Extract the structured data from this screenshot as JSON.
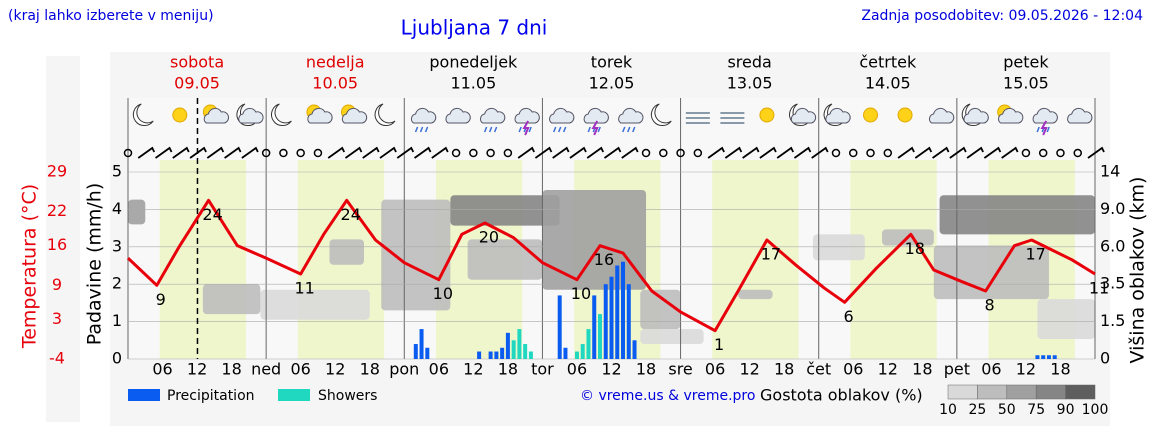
{
  "chart_data": {
    "type": "meteogram",
    "title": "Ljubljana 7 dni",
    "note": "(kraj lahko izberete v meniju)",
    "updated": "Zadnja posodobitev: 09.05.2026 - 12:04",
    "credit": "© vreme.us & vreme.pro",
    "days": [
      {
        "name": "sobota",
        "date": "09.05",
        "color": "#e00000"
      },
      {
        "name": "nedelja",
        "date": "10.05",
        "color": "#e00000"
      },
      {
        "name": "ponedeljek",
        "date": "11.05",
        "color": "#000000"
      },
      {
        "name": "torek",
        "date": "12.05",
        "color": "#000000"
      },
      {
        "name": "sreda",
        "date": "13.05",
        "color": "#000000"
      },
      {
        "name": "četrtek",
        "date": "14.05",
        "color": "#000000"
      },
      {
        "name": "petek",
        "date": "15.05",
        "color": "#000000"
      }
    ],
    "xlim": [
      0,
      168
    ],
    "xticks": [
      {
        "value": 6,
        "label": "06"
      },
      12,
      18,
      {
        "value": 24,
        "label": "ned"
      },
      {
        "value": 30,
        "label": "06"
      },
      {
        "value": 36,
        "label": "12"
      },
      {
        "value": 42,
        "label": "18"
      },
      {
        "value": 48,
        "label": "pon"
      },
      {
        "value": 54,
        "label": "06"
      },
      {
        "value": 60,
        "label": "12"
      },
      {
        "value": 66,
        "label": "18"
      },
      {
        "value": 72,
        "label": "tor"
      },
      {
        "value": 78,
        "label": "06"
      },
      {
        "value": 84,
        "label": "12"
      },
      {
        "value": 90,
        "label": "18"
      },
      {
        "value": 96,
        "label": "sre"
      },
      {
        "value": 102,
        "label": "06"
      },
      {
        "value": 108,
        "label": "12"
      },
      {
        "value": 114,
        "label": "18"
      },
      {
        "value": 120,
        "label": "čet"
      },
      {
        "value": 126,
        "label": "06"
      },
      {
        "value": 132,
        "label": "12"
      },
      {
        "value": 138,
        "label": "18"
      },
      {
        "value": 144,
        "label": "pet"
      },
      {
        "value": 150,
        "label": "06"
      },
      {
        "value": 156,
        "label": "12"
      },
      {
        "value": 162,
        "label": "18"
      }
    ],
    "now": 12.07,
    "daylight": [
      5.5,
      20.5
    ],
    "ylabel": "Padavine (mm/h)",
    "ylim": [
      0,
      5
    ],
    "yticks": [
      0,
      1,
      2,
      3,
      4,
      5
    ],
    "y2label": "Višina oblakov (km)",
    "y2lim": [
      0,
      14
    ],
    "y2ticks": [
      0,
      1.5,
      3.5,
      {
        "value": 6,
        "label": "6.0"
      },
      {
        "value": 9,
        "label": "9.0"
      },
      14
    ],
    "temperature": {
      "label": "Temperatura (°C)",
      "color": "#e8000b",
      "ylim": [
        -4,
        29
      ],
      "yticks": [
        29,
        22,
        16,
        9,
        3,
        -4
      ],
      "x": [
        0,
        5,
        9,
        14,
        19,
        24,
        30,
        34,
        38,
        43,
        48,
        54,
        58,
        62,
        67,
        72,
        78,
        82,
        86,
        91,
        96,
        102,
        106,
        111,
        116,
        121,
        124.5,
        130,
        136,
        140,
        145,
        149,
        154,
        157,
        164,
        168
      ],
      "values": [
        13.8,
        9,
        16,
        24,
        16,
        13.8,
        11,
        18,
        24,
        17,
        13,
        10,
        18,
        20,
        17.4,
        13,
        10,
        16,
        14.7,
        8,
        4.3,
        1,
        8,
        17,
        12.6,
        8.5,
        6,
        12,
        18,
        11.7,
        9.6,
        8,
        16,
        17,
        13.5,
        11
      ],
      "extrema": {
        "x": [
          5,
          14,
          30,
          38,
          54,
          62,
          78,
          82,
          102,
          111,
          124.5,
          136,
          149,
          157,
          168
        ],
        "values": [
          9,
          24,
          11,
          24,
          10,
          20,
          10,
          16,
          1,
          17,
          6,
          18,
          8,
          17,
          11
        ]
      }
    },
    "series": [
      {
        "name": "Precipitation",
        "color": "#0a5cf0",
        "x": [
          50,
          51,
          52,
          61,
          63,
          64,
          65,
          66,
          75,
          76,
          81,
          83,
          84,
          85,
          86,
          87,
          88,
          158,
          159,
          160,
          161
        ],
        "values": [
          0.4,
          0.8,
          0.3,
          0.2,
          0.2,
          0.2,
          0.3,
          0.7,
          1.7,
          0.3,
          1.7,
          2.0,
          2.2,
          2.5,
          2.6,
          2.0,
          0.5,
          0.1,
          0.1,
          0.1,
          0.1
        ]
      },
      {
        "name": "Showers",
        "color": "#20d8c0",
        "x": [
          67,
          68,
          69,
          70,
          78,
          79,
          80,
          82
        ],
        "values": [
          0.5,
          0.8,
          0.4,
          0.2,
          0.2,
          0.4,
          0.8,
          1.2
        ]
      }
    ],
    "clouds": {
      "label": "Gostota oblakov (%)",
      "ticks": [
        10,
        25,
        50,
        75,
        90,
        100
      ],
      "colors": [
        "#d9d9d9",
        "#bdbdbd",
        "#a0a0a0",
        "#858585",
        "#5e5e5e"
      ],
      "blocks": [
        {
          "x": [
            0,
            3
          ],
          "km": [
            7.8,
            10.3
          ],
          "density": 75
        },
        {
          "x": [
            13,
            23
          ],
          "km": [
            1.9,
            3.5
          ],
          "density": 50
        },
        {
          "x": [
            23,
            42
          ],
          "km": [
            1.6,
            3.2
          ],
          "density": 25
        },
        {
          "x": [
            35,
            41
          ],
          "km": [
            4.8,
            6.6
          ],
          "density": 50
        },
        {
          "x": [
            44,
            56
          ],
          "km": [
            2.1,
            10.3
          ],
          "density": 50
        },
        {
          "x": [
            56,
            75
          ],
          "km": [
            7.7,
            10.9
          ],
          "density": 90
        },
        {
          "x": [
            59,
            72
          ],
          "km": [
            3.8,
            6.6
          ],
          "density": 50
        },
        {
          "x": [
            72,
            90
          ],
          "km": [
            3.2,
            11.6
          ],
          "density": 75
        },
        {
          "x": [
            89,
            96
          ],
          "km": [
            1.2,
            3.2
          ],
          "density": 50
        },
        {
          "x": [
            89,
            100
          ],
          "km": [
            0.6,
            1.2
          ],
          "density": 25
        },
        {
          "x": [
            106,
            112
          ],
          "km": [
            2.7,
            3.2
          ],
          "density": 50
        },
        {
          "x": [
            119,
            128
          ],
          "km": [
            5.1,
            7.0
          ],
          "density": 25
        },
        {
          "x": [
            131,
            140
          ],
          "km": [
            6.1,
            7.4
          ],
          "density": 50
        },
        {
          "x": [
            141,
            168
          ],
          "km": [
            7.0,
            10.9
          ],
          "density": 90
        },
        {
          "x": [
            140,
            160
          ],
          "km": [
            2.7,
            6.1
          ],
          "density": 50
        },
        {
          "x": [
            158,
            168
          ],
          "km": [
            0.8,
            2.7
          ],
          "density": 25
        }
      ]
    }
  }
}
